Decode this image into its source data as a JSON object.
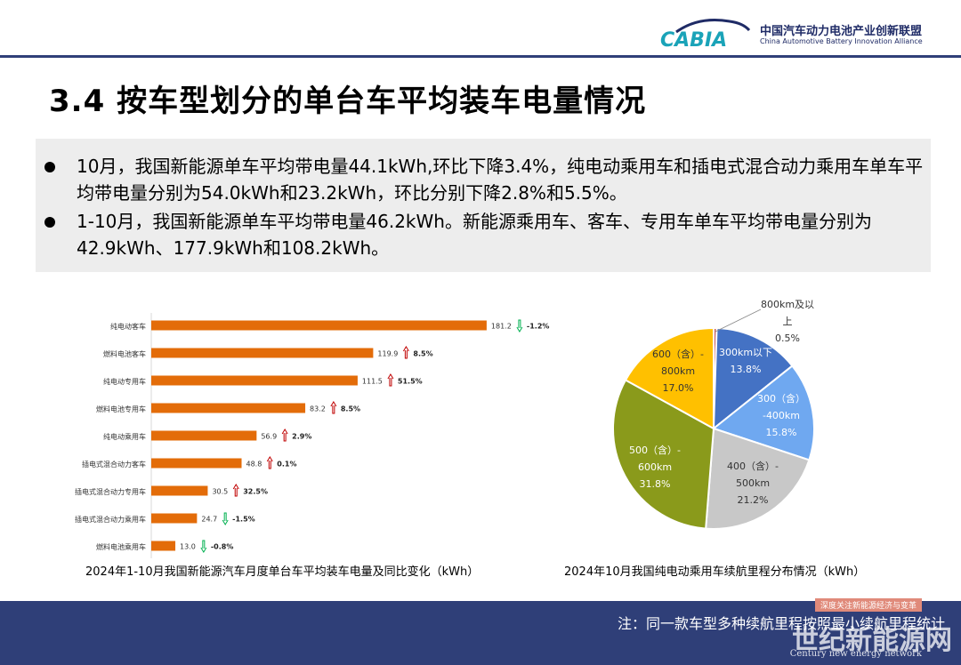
{
  "header": {
    "logo_text": "CABIA",
    "org_cn": "中国汽车动力电池产业创新联盟",
    "org_en": "China Automotive Battery Innovation Alliance"
  },
  "title": "3.4 按车型划分的单台车平均装车电量情况",
  "bullets": [
    "10月，我国新能源单车平均带电量44.1kWh,环比下降3.4%，纯电动乘用车和插电式混合动力乘用车单车平均带电量分别为54.0kWh和23.2kWh，环比分别下降2.8%和5.5%。",
    "1-10月，我国新能源单车平均带电量46.2kWh。新能源乘用车、客车、专用车单车平均带电量分别为42.9kWh、177.9kWh和108.2kWh。"
  ],
  "chart_data": [
    {
      "type": "bar",
      "orientation": "horizontal",
      "title": "2024年1-10月我国新能源汽车月度单台车平均装车电量及同比变化（kWh）",
      "categories": [
        "纯电动客车",
        "燃料电池客车",
        "纯电动专用车",
        "燃料电池专用车",
        "纯电动乘用车",
        "插电式混合动力客车",
        "插电式混合动力专用车",
        "插电式混合动力乘用车",
        "燃料电池乘用车"
      ],
      "values": [
        181.2,
        119.9,
        111.5,
        83.2,
        56.9,
        48.8,
        30.5,
        24.7,
        13.0
      ],
      "value_labels": [
        "181.2",
        "119.9",
        "111.5",
        "83.2",
        "56.9",
        "48.8",
        "30.5",
        "24.7",
        "13.0"
      ],
      "changes": [
        "-1.2%",
        "8.5%",
        "51.5%",
        "8.5%",
        "2.9%",
        "0.1%",
        "32.5%",
        "-1.5%",
        "-0.8%"
      ],
      "change_direction": [
        "down",
        "up",
        "up",
        "up",
        "up",
        "up",
        "up",
        "down",
        "down"
      ],
      "bar_color": "#e36c09",
      "up_color": "#c00000",
      "down_color": "#00b050",
      "xlim": [
        0,
        200
      ]
    },
    {
      "type": "pie",
      "title": "2024年10月我国纯电动乘用车续航里程分布情况（kWh）",
      "slices": [
        {
          "label": "800km及以上",
          "value": 0.5,
          "value_label": "0.5%",
          "color": "#c55a5a"
        },
        {
          "label": "300km以下",
          "value": 13.8,
          "value_label": "13.8%",
          "color": "#4472c4"
        },
        {
          "label": "300（含）-400km",
          "value": 15.8,
          "value_label": "15.8%",
          "color": "#6fa8f0"
        },
        {
          "label": "400（含）-500km",
          "value": 21.2,
          "value_label": "21.2%",
          "color": "#c8c8c8"
        },
        {
          "label": "500（含）-600km",
          "value": 31.8,
          "value_label": "31.8%",
          "color": "#8a9a1b"
        },
        {
          "label": "600（含）-800km",
          "value": 17.0,
          "value_label": "17.0%",
          "color": "#ffc000"
        }
      ]
    }
  ],
  "footer": {
    "note": "注：同一款车型多种续航里程按照最小续航里程统计",
    "watermark_tag": "深度关注新能源经济与变革",
    "watermark_cn": "世纪新能源网",
    "watermark_en": "Century new energy network"
  }
}
